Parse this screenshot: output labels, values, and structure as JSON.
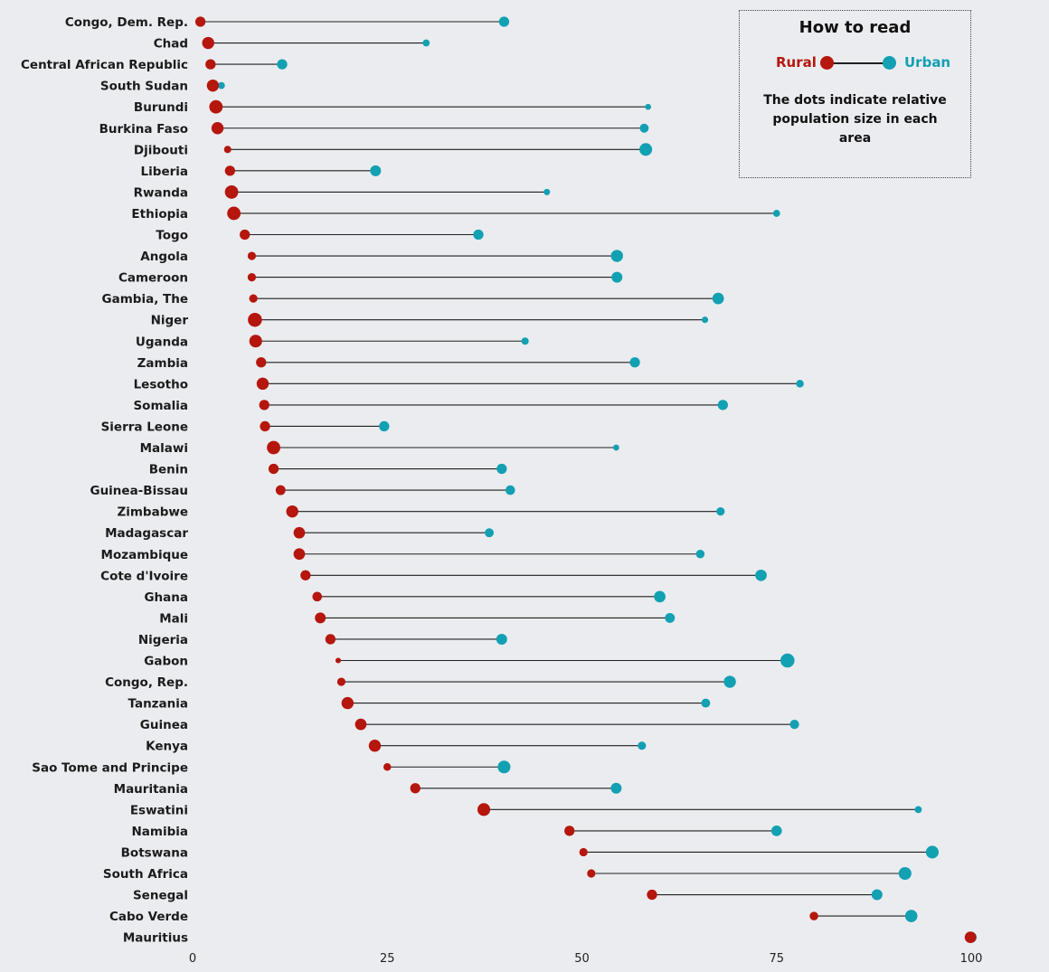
{
  "legend": {
    "title": "How to read",
    "rural_label": "Rural",
    "urban_label": "Urban",
    "note": "The dots indicate relative population size in each area"
  },
  "colors": {
    "rural": "#b5160d",
    "urban": "#12a0b3",
    "stem": "#1f1f1f",
    "background": "#ebecef"
  },
  "chart_data": {
    "type": "dumbbell",
    "xlim": [
      0,
      100
    ],
    "xticks": [
      0,
      25,
      50,
      75,
      100
    ],
    "xlabel": "",
    "ylabel": "",
    "series": [
      {
        "name": "Rural"
      },
      {
        "name": "Urban"
      }
    ],
    "dot_size_meaning": "relative population size in each area",
    "rows": [
      {
        "country": "Congo, Dem. Rep.",
        "rural": 1,
        "urban": 40,
        "rural_size": 0.45,
        "urban_size": 0.45
      },
      {
        "country": "Chad",
        "rural": 2,
        "urban": 30,
        "rural_size": 0.6,
        "urban_size": 0.2
      },
      {
        "country": "Central African Republic",
        "rural": 2.3,
        "urban": 11.5,
        "rural_size": 0.45,
        "urban_size": 0.45
      },
      {
        "country": "South Sudan",
        "rural": 2.6,
        "urban": 3.7,
        "rural_size": 0.6,
        "urban_size": 0.2
      },
      {
        "country": "Burundi",
        "rural": 3,
        "urban": 58.5,
        "rural_size": 0.7,
        "urban_size": 0.12
      },
      {
        "country": "Burkina Faso",
        "rural": 3.2,
        "urban": 58,
        "rural_size": 0.6,
        "urban_size": 0.35
      },
      {
        "country": "Djibouti",
        "rural": 4.5,
        "urban": 58.2,
        "rural_size": 0.22,
        "urban_size": 0.65
      },
      {
        "country": "Liberia",
        "rural": 4.8,
        "urban": 23.5,
        "rural_size": 0.45,
        "urban_size": 0.5
      },
      {
        "country": "Rwanda",
        "rural": 5,
        "urban": 45.5,
        "rural_size": 0.7,
        "urban_size": 0.15
      },
      {
        "country": "Ethiopia",
        "rural": 5.3,
        "urban": 75,
        "rural_size": 0.7,
        "urban_size": 0.2
      },
      {
        "country": "Togo",
        "rural": 6.7,
        "urban": 36.7,
        "rural_size": 0.45,
        "urban_size": 0.45
      },
      {
        "country": "Angola",
        "rural": 7.6,
        "urban": 54.5,
        "rural_size": 0.3,
        "urban_size": 0.6
      },
      {
        "country": "Cameroon",
        "rural": 7.6,
        "urban": 54.5,
        "rural_size": 0.3,
        "urban_size": 0.5
      },
      {
        "country": "Gambia, The",
        "rural": 7.8,
        "urban": 67.5,
        "rural_size": 0.3,
        "urban_size": 0.55
      },
      {
        "country": "Niger",
        "rural": 8,
        "urban": 65.8,
        "rural_size": 0.75,
        "urban_size": 0.15
      },
      {
        "country": "Uganda",
        "rural": 8.1,
        "urban": 42.7,
        "rural_size": 0.65,
        "urban_size": 0.22
      },
      {
        "country": "Zambia",
        "rural": 8.8,
        "urban": 56.8,
        "rural_size": 0.45,
        "urban_size": 0.45
      },
      {
        "country": "Lesotho",
        "rural": 9,
        "urban": 78,
        "rural_size": 0.6,
        "urban_size": 0.25
      },
      {
        "country": "Somalia",
        "rural": 9.2,
        "urban": 68.1,
        "rural_size": 0.45,
        "urban_size": 0.45
      },
      {
        "country": "Sierra Leone",
        "rural": 9.3,
        "urban": 24.6,
        "rural_size": 0.45,
        "urban_size": 0.45
      },
      {
        "country": "Malawi",
        "rural": 10.4,
        "urban": 54.4,
        "rural_size": 0.7,
        "urban_size": 0.12
      },
      {
        "country": "Benin",
        "rural": 10.4,
        "urban": 39.7,
        "rural_size": 0.45,
        "urban_size": 0.45
      },
      {
        "country": "Guinea-Bissau",
        "rural": 11.3,
        "urban": 40.8,
        "rural_size": 0.42,
        "urban_size": 0.4
      },
      {
        "country": "Zimbabwe",
        "rural": 12.8,
        "urban": 67.8,
        "rural_size": 0.6,
        "urban_size": 0.3
      },
      {
        "country": "Madagascar",
        "rural": 13.7,
        "urban": 38.1,
        "rural_size": 0.55,
        "urban_size": 0.35
      },
      {
        "country": "Mozambique",
        "rural": 13.7,
        "urban": 65.2,
        "rural_size": 0.55,
        "urban_size": 0.32
      },
      {
        "country": "Cote d'Ivoire",
        "rural": 14.5,
        "urban": 73,
        "rural_size": 0.45,
        "urban_size": 0.55
      },
      {
        "country": "Ghana",
        "rural": 16,
        "urban": 60,
        "rural_size": 0.4,
        "urban_size": 0.55
      },
      {
        "country": "Mali",
        "rural": 16.4,
        "urban": 61.3,
        "rural_size": 0.5,
        "urban_size": 0.42
      },
      {
        "country": "Nigeria",
        "rural": 17.7,
        "urban": 39.7,
        "rural_size": 0.45,
        "urban_size": 0.5
      },
      {
        "country": "Gabon",
        "rural": 18.7,
        "urban": 76.4,
        "rural_size": 0.08,
        "urban_size": 0.75
      },
      {
        "country": "Congo, Rep.",
        "rural": 19.1,
        "urban": 69,
        "rural_size": 0.3,
        "urban_size": 0.6
      },
      {
        "country": "Tanzania",
        "rural": 19.9,
        "urban": 65.9,
        "rural_size": 0.6,
        "urban_size": 0.35
      },
      {
        "country": "Guinea",
        "rural": 21.6,
        "urban": 77.3,
        "rural_size": 0.55,
        "urban_size": 0.38
      },
      {
        "country": "Kenya",
        "rural": 23.4,
        "urban": 57.7,
        "rural_size": 0.6,
        "urban_size": 0.3
      },
      {
        "country": "Sao Tome and Principe",
        "rural": 25,
        "urban": 40,
        "rural_size": 0.25,
        "urban_size": 0.65
      },
      {
        "country": "Mauritania",
        "rural": 28.6,
        "urban": 54.4,
        "rural_size": 0.45,
        "urban_size": 0.5
      },
      {
        "country": "Eswatini",
        "rural": 37.4,
        "urban": 93.2,
        "rural_size": 0.65,
        "urban_size": 0.2
      },
      {
        "country": "Namibia",
        "rural": 48.4,
        "urban": 75,
        "rural_size": 0.45,
        "urban_size": 0.48
      },
      {
        "country": "Botswana",
        "rural": 50.2,
        "urban": 95,
        "rural_size": 0.3,
        "urban_size": 0.65
      },
      {
        "country": "South Africa",
        "rural": 51.2,
        "urban": 91.5,
        "rural_size": 0.3,
        "urban_size": 0.65
      },
      {
        "country": "Senegal",
        "rural": 59,
        "urban": 87.9,
        "rural_size": 0.45,
        "urban_size": 0.5
      },
      {
        "country": "Cabo Verde",
        "rural": 79.8,
        "urban": 92.3,
        "rural_size": 0.32,
        "urban_size": 0.62
      },
      {
        "country": "Mauritius",
        "rural": 99.9,
        "urban": 100,
        "rural_size": 0.55,
        "urban_size": 0.5
      }
    ]
  }
}
